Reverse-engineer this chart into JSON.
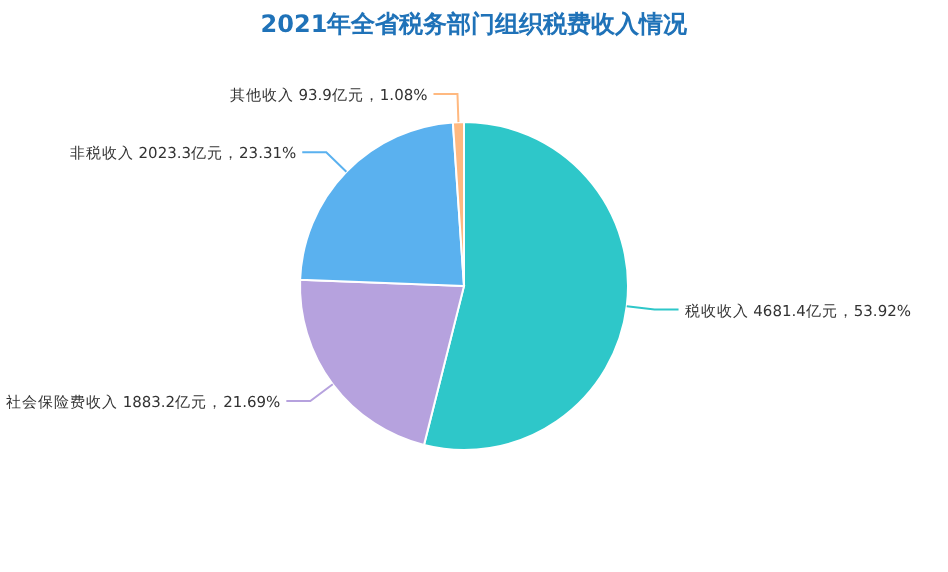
{
  "chart_data": {
    "type": "pie",
    "title": "2021年全省税务部门组织税费收入情况",
    "categories": [
      "税收收入",
      "社会保险费收入",
      "非税收入",
      "其他收入"
    ],
    "values": [
      4681.4,
      1883.2,
      2023.3,
      93.9
    ],
    "value_labels": [
      "4681.4亿元，53.92%",
      "1883.2亿元，21.69%",
      "2023.3亿元，23.31%",
      "93.9亿元，1.08%"
    ],
    "colors": [
      "#2ec7c9",
      "#b6a2de",
      "#5ab1ef",
      "#ffb980"
    ]
  }
}
